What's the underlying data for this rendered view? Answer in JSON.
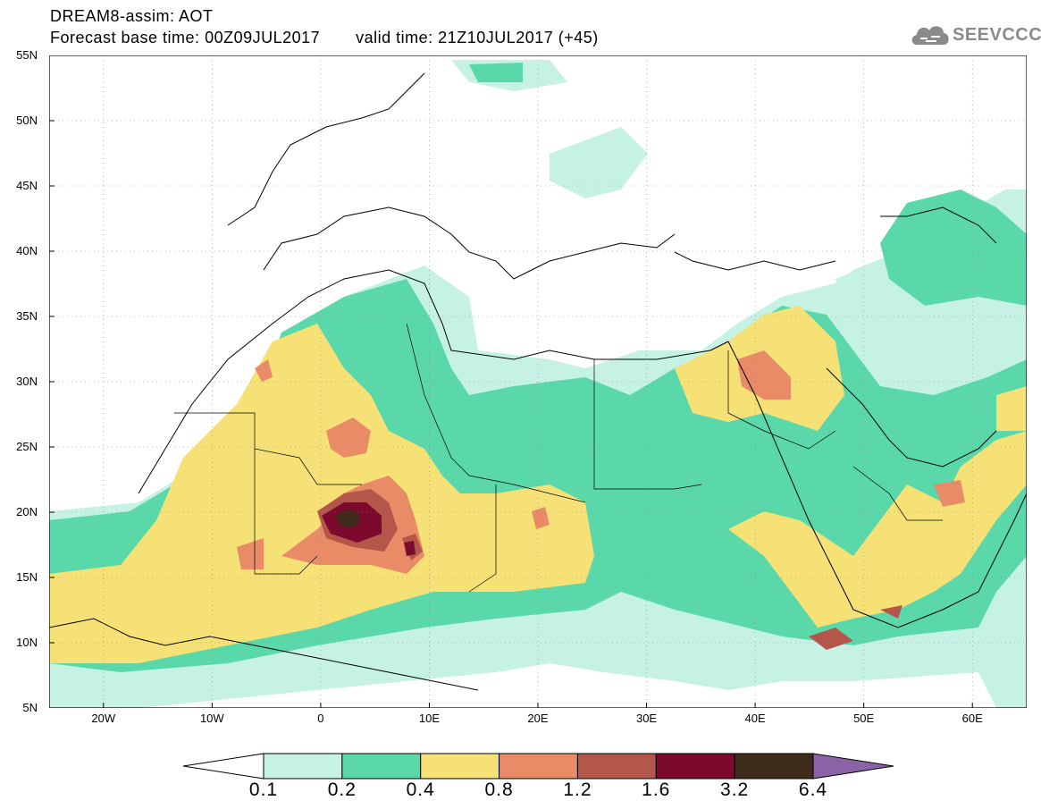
{
  "header": {
    "title": "DREAM8-assim: AOT",
    "base_time": "Forecast base time: 00Z09JUL2017",
    "valid_time": "valid time: 21Z10JUL2017 (+45)"
  },
  "logo": {
    "text": "SEEVCCC",
    "icon": "cloud-icon",
    "color": "#8a8a8a"
  },
  "map": {
    "lon_range": [
      -25,
      65
    ],
    "lat_range": [
      5,
      55
    ],
    "lon_ticks": [
      {
        "value": -20,
        "label": "20W"
      },
      {
        "value": -10,
        "label": "10W"
      },
      {
        "value": 0,
        "label": "0"
      },
      {
        "value": 10,
        "label": "10E"
      },
      {
        "value": 20,
        "label": "20E"
      },
      {
        "value": 30,
        "label": "30E"
      },
      {
        "value": 40,
        "label": "40E"
      },
      {
        "value": 50,
        "label": "50E"
      },
      {
        "value": 60,
        "label": "60E"
      }
    ],
    "lat_ticks": [
      {
        "value": 55,
        "label": "55N"
      },
      {
        "value": 50,
        "label": "50N"
      },
      {
        "value": 45,
        "label": "45N"
      },
      {
        "value": 40,
        "label": "40N"
      },
      {
        "value": 35,
        "label": "35N"
      },
      {
        "value": 30,
        "label": "30N"
      },
      {
        "value": 25,
        "label": "25N"
      },
      {
        "value": 20,
        "label": "20N"
      },
      {
        "value": 15,
        "label": "15N"
      },
      {
        "value": 10,
        "label": "10N"
      },
      {
        "value": 5,
        "label": "5N"
      }
    ],
    "grid": true
  },
  "colorbar": {
    "levels": [
      "0.1",
      "0.2",
      "0.4",
      "0.8",
      "1.2",
      "1.6",
      "3.2",
      "6.4"
    ],
    "under_color": "#ffffff",
    "colors": [
      "#c6f2e6",
      "#5ad8aa",
      "#f5e176",
      "#e98b67",
      "#b5564a",
      "#7c0a2c",
      "#3e2b19"
    ],
    "over_color": "#8b64a8"
  }
}
